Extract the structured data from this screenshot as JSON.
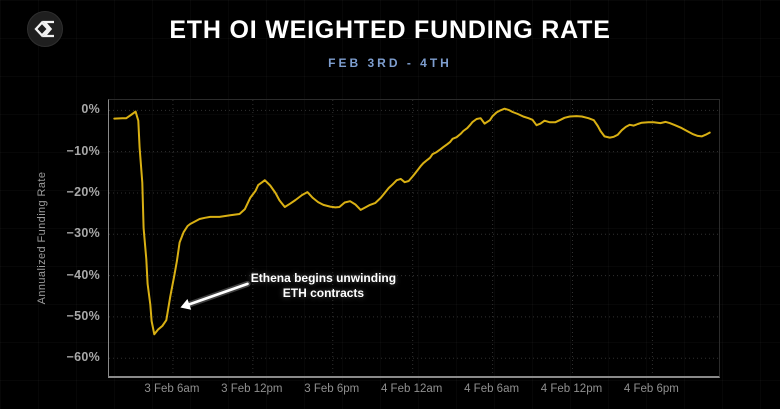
{
  "header": {
    "title": "ETH OI WEIGHTED FUNDING RATE",
    "subtitle": "FEB 3RD - 4TH",
    "logo_icon": "sigma-diamond-logo"
  },
  "colors": {
    "background": "#000000",
    "title_text": "#ffffff",
    "subtitle_text": "#7e9ecf",
    "line": "#d9b013",
    "grid": "#303030",
    "axis_line": "#8a8a8a",
    "axis_text": "#a8a8a8",
    "annotation_text": "#ffffff"
  },
  "chart_data": {
    "type": "line",
    "title": "ETH OI WEIGHTED FUNDING RATE",
    "subtitle": "FEB 3RD - 4TH",
    "xlabel": "",
    "ylabel": "Annualized Funding Rate",
    "x_unit": "hours since 3 Feb 12am",
    "xlim": [
      1.2,
      47.0
    ],
    "ylim": [
      -64.3,
      2.5
    ],
    "grid": true,
    "legend_position": "none",
    "x_ticks": [
      {
        "t": 6,
        "label": "3 Feb 6am"
      },
      {
        "t": 12,
        "label": "3 Feb 12pm"
      },
      {
        "t": 18,
        "label": "3 Feb 6pm"
      },
      {
        "t": 24,
        "label": "4 Feb 12am"
      },
      {
        "t": 30,
        "label": "4 Feb 6am"
      },
      {
        "t": 36,
        "label": "4 Feb 12pm"
      },
      {
        "t": 42,
        "label": "4 Feb 6pm"
      }
    ],
    "y_ticks": [
      {
        "v": 0,
        "label": "0%"
      },
      {
        "v": -10,
        "label": "−10%"
      },
      {
        "v": -20,
        "label": "−20%"
      },
      {
        "v": -30,
        "label": "−30%"
      },
      {
        "v": -40,
        "label": "−40%"
      },
      {
        "v": -50,
        "label": "−50%"
      },
      {
        "v": -60,
        "label": "−60%"
      }
    ],
    "series": [
      {
        "name": "ETH OI weighted funding rate (annualized)",
        "color": "#d9b013",
        "points": [
          [
            1.6,
            -2.0
          ],
          [
            2.2,
            -1.9
          ],
          [
            2.5,
            -1.9
          ],
          [
            2.9,
            -1.0
          ],
          [
            3.2,
            -0.3
          ],
          [
            3.4,
            -2.5
          ],
          [
            3.5,
            -9.0
          ],
          [
            3.7,
            -17.5
          ],
          [
            3.8,
            -28.5
          ],
          [
            4.0,
            -36.0
          ],
          [
            4.1,
            -42.0
          ],
          [
            4.3,
            -47.0
          ],
          [
            4.4,
            -51.0
          ],
          [
            4.6,
            -54.2
          ],
          [
            4.9,
            -53.0
          ],
          [
            5.2,
            -52.2
          ],
          [
            5.5,
            -50.8
          ],
          [
            5.8,
            -45.0
          ],
          [
            6.1,
            -40.0
          ],
          [
            6.3,
            -36.5
          ],
          [
            6.5,
            -32.0
          ],
          [
            6.8,
            -29.5
          ],
          [
            7.1,
            -28.0
          ],
          [
            7.3,
            -27.5
          ],
          [
            7.7,
            -26.8
          ],
          [
            8.0,
            -26.3
          ],
          [
            8.4,
            -26.0
          ],
          [
            8.8,
            -25.8
          ],
          [
            9.5,
            -25.8
          ],
          [
            10.3,
            -25.4
          ],
          [
            11.0,
            -25.1
          ],
          [
            11.4,
            -23.9
          ],
          [
            11.8,
            -21.2
          ],
          [
            12.2,
            -19.5
          ],
          [
            12.4,
            -18.1
          ],
          [
            12.7,
            -17.4
          ],
          [
            12.9,
            -16.9
          ],
          [
            13.3,
            -18.2
          ],
          [
            13.7,
            -20.0
          ],
          [
            14.0,
            -21.8
          ],
          [
            14.4,
            -23.4
          ],
          [
            14.8,
            -22.6
          ],
          [
            15.2,
            -21.7
          ],
          [
            15.7,
            -20.5
          ],
          [
            16.1,
            -19.8
          ],
          [
            16.5,
            -21.2
          ],
          [
            16.9,
            -22.2
          ],
          [
            17.3,
            -22.9
          ],
          [
            17.8,
            -23.3
          ],
          [
            18.2,
            -23.5
          ],
          [
            18.5,
            -23.4
          ],
          [
            18.9,
            -22.3
          ],
          [
            19.3,
            -22.0
          ],
          [
            19.7,
            -22.8
          ],
          [
            20.1,
            -24.1
          ],
          [
            20.4,
            -23.6
          ],
          [
            20.8,
            -22.9
          ],
          [
            21.2,
            -22.4
          ],
          [
            21.6,
            -21.2
          ],
          [
            21.9,
            -20.0
          ],
          [
            22.2,
            -18.8
          ],
          [
            22.5,
            -17.9
          ],
          [
            22.8,
            -16.9
          ],
          [
            23.1,
            -16.6
          ],
          [
            23.4,
            -17.4
          ],
          [
            23.7,
            -17.1
          ],
          [
            24.0,
            -16.0
          ],
          [
            24.2,
            -15.2
          ],
          [
            24.6,
            -13.5
          ],
          [
            24.8,
            -12.8
          ],
          [
            25.1,
            -12.0
          ],
          [
            25.3,
            -11.5
          ],
          [
            25.5,
            -10.6
          ],
          [
            25.8,
            -10.1
          ],
          [
            26.1,
            -9.4
          ],
          [
            26.3,
            -8.9
          ],
          [
            26.6,
            -8.2
          ],
          [
            26.8,
            -7.7
          ],
          [
            27.0,
            -6.9
          ],
          [
            27.3,
            -6.5
          ],
          [
            27.6,
            -5.7
          ],
          [
            27.8,
            -5.0
          ],
          [
            28.1,
            -4.3
          ],
          [
            28.3,
            -3.6
          ],
          [
            28.5,
            -2.8
          ],
          [
            28.8,
            -2.1
          ],
          [
            29.1,
            -1.9
          ],
          [
            29.4,
            -3.2
          ],
          [
            29.8,
            -2.4
          ],
          [
            30.0,
            -1.4
          ],
          [
            30.3,
            -0.5
          ],
          [
            30.6,
            0.0
          ],
          [
            30.9,
            0.4
          ],
          [
            31.2,
            0.1
          ],
          [
            31.5,
            -0.4
          ],
          [
            31.9,
            -0.9
          ],
          [
            32.3,
            -1.5
          ],
          [
            32.7,
            -1.9
          ],
          [
            33.0,
            -2.3
          ],
          [
            33.3,
            -3.6
          ],
          [
            33.6,
            -3.2
          ],
          [
            33.9,
            -2.5
          ],
          [
            34.3,
            -2.9
          ],
          [
            34.7,
            -2.9
          ],
          [
            35.1,
            -2.3
          ],
          [
            35.4,
            -1.8
          ],
          [
            35.8,
            -1.5
          ],
          [
            36.3,
            -1.4
          ],
          [
            36.7,
            -1.5
          ],
          [
            37.2,
            -1.9
          ],
          [
            37.6,
            -2.4
          ],
          [
            37.9,
            -3.8
          ],
          [
            38.1,
            -5.0
          ],
          [
            38.4,
            -6.3
          ],
          [
            38.8,
            -6.6
          ],
          [
            39.1,
            -6.4
          ],
          [
            39.4,
            -5.9
          ],
          [
            39.7,
            -4.8
          ],
          [
            40.0,
            -4.0
          ],
          [
            40.3,
            -3.5
          ],
          [
            40.6,
            -3.7
          ],
          [
            40.9,
            -3.3
          ],
          [
            41.2,
            -3.0
          ],
          [
            41.7,
            -2.9
          ],
          [
            42.1,
            -2.9
          ],
          [
            42.6,
            -3.1
          ],
          [
            43.0,
            -2.8
          ],
          [
            43.3,
            -3.1
          ],
          [
            43.7,
            -3.6
          ],
          [
            44.2,
            -4.3
          ],
          [
            44.6,
            -5.0
          ],
          [
            45.0,
            -5.7
          ],
          [
            45.4,
            -6.2
          ],
          [
            45.7,
            -6.3
          ],
          [
            46.0,
            -5.9
          ],
          [
            46.3,
            -5.4
          ]
        ]
      }
    ],
    "annotation": {
      "text_line1": "Ethena begins unwinding",
      "text_line2": "ETH contracts",
      "text_at": {
        "t": 17.3,
        "v": -42.5
      },
      "arrow": {
        "from": {
          "t": 11.6,
          "v": -42.0
        },
        "to": {
          "t": 7.2,
          "v": -47.0
        }
      }
    }
  }
}
